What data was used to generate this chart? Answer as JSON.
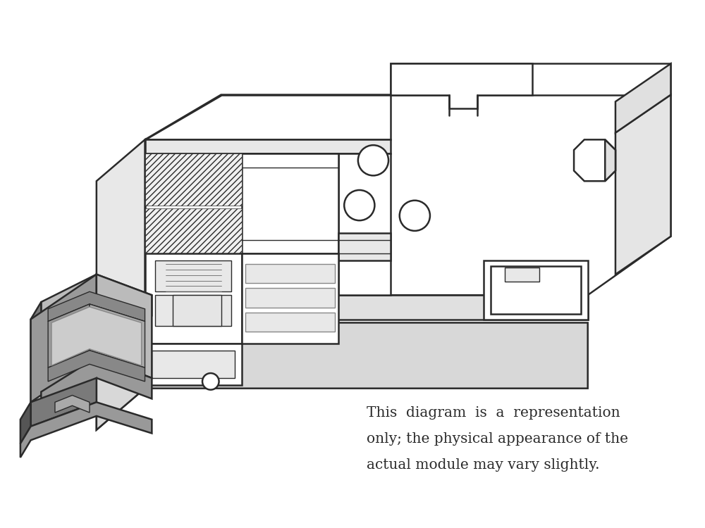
{
  "bg_color": "#ffffff",
  "line_color": "#2a2a2a",
  "gray_dark": "#7a7a7a",
  "gray_mid": "#999999",
  "gray_light": "#bbbbbb",
  "gray_very_light": "#e8e8e8",
  "white_fill": "#ffffff",
  "lw_main": 1.8,
  "lw_thin": 1.0,
  "lw_thick": 2.2,
  "caption_line1": "This  diagram  is  a  representation",
  "caption_line2": "only; the physical appearance of the",
  "caption_line3": "actual module may vary slightly.",
  "fig_width": 10.0,
  "fig_height": 7.5,
  "dpi": 100
}
